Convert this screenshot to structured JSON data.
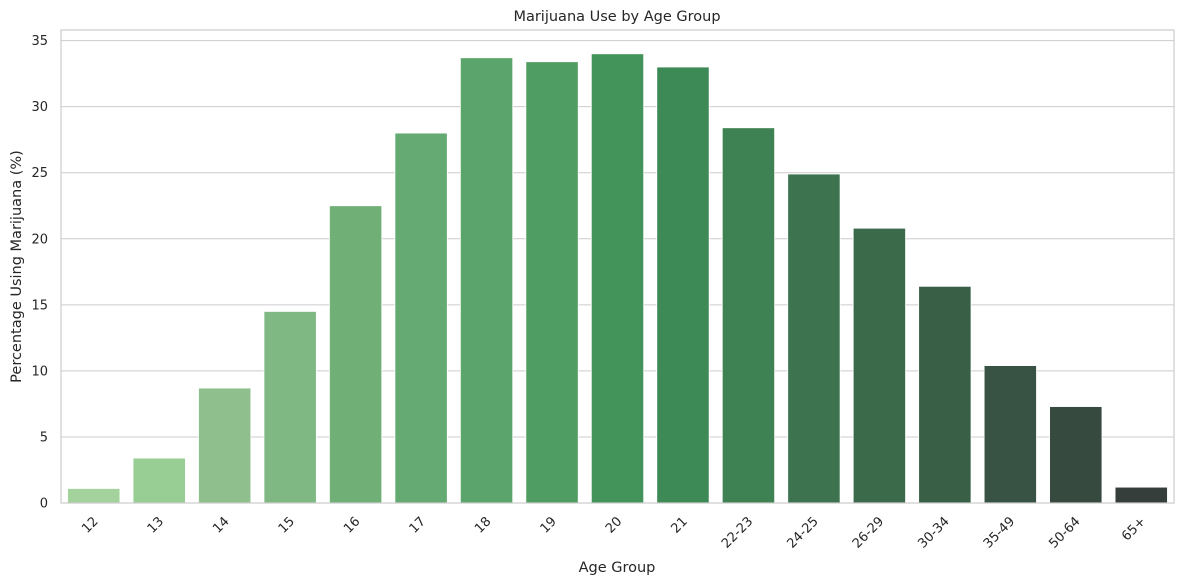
{
  "chart_data": {
    "type": "bar",
    "title": "Marijuana Use by Age Group",
    "xlabel": "Age Group",
    "ylabel": "Percentage Using Marijuana (%)",
    "categories": [
      "12",
      "13",
      "14",
      "15",
      "16",
      "17",
      "18",
      "19",
      "20",
      "21",
      "22-23",
      "24-25",
      "26-29",
      "30-34",
      "35-49",
      "50-64",
      "65+"
    ],
    "values": [
      1.1,
      3.4,
      8.7,
      14.5,
      22.5,
      28.0,
      33.7,
      33.4,
      34.0,
      33.0,
      28.4,
      24.9,
      20.8,
      16.4,
      10.4,
      7.3,
      1.2
    ],
    "ylim": [
      0,
      35.8
    ],
    "yticks": [
      0,
      5,
      10,
      15,
      20,
      25,
      30,
      35
    ],
    "grid": "horizontal",
    "xtick_rotation": -45,
    "colors": [
      "#a3d29c",
      "#98cd94",
      "#8fbf8c",
      "#7fb883",
      "#70b077",
      "#65aa72",
      "#5ba46b",
      "#509d63",
      "#43945a",
      "#3e8a56",
      "#3e8152",
      "#3e734f",
      "#3b6a4b",
      "#395f47",
      "#385344",
      "#374a3f",
      "#353e3a"
    ]
  }
}
